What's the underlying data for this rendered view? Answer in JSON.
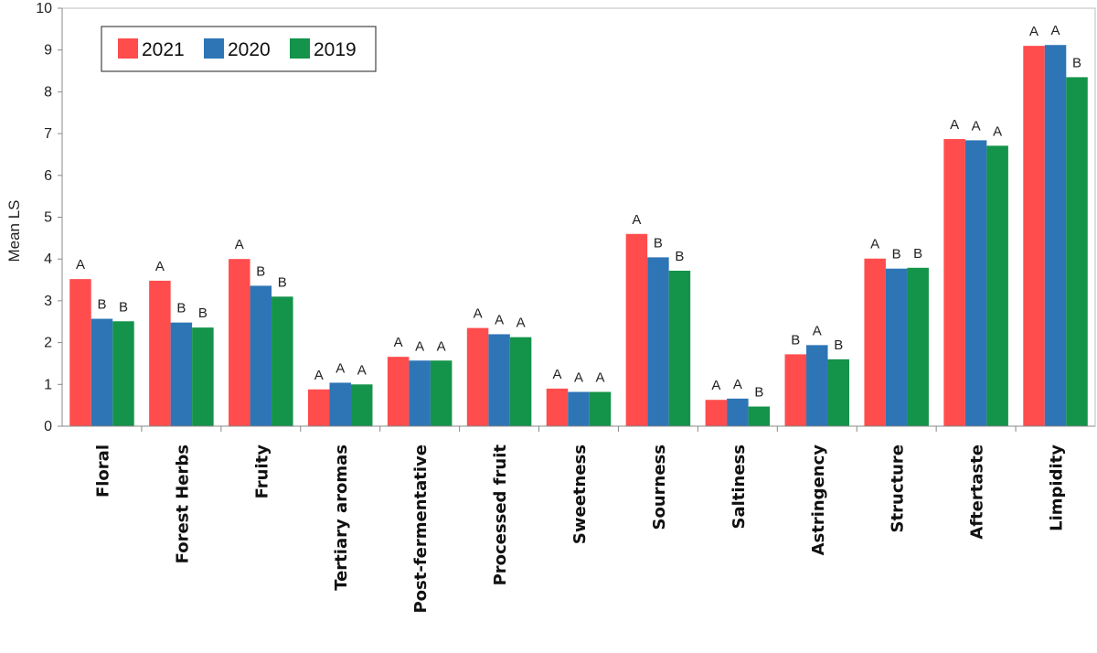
{
  "chart_data": {
    "type": "bar",
    "title": "",
    "xlabel": "",
    "ylabel": "Mean LS",
    "ylim": [
      0,
      10
    ],
    "yticks": [
      0,
      1,
      2,
      3,
      4,
      5,
      6,
      7,
      8,
      9,
      10
    ],
    "grid": false,
    "legend_position": "top-left",
    "categories": [
      "Floral",
      "Forest Herbs",
      "Fruity",
      "Tertiary aromas",
      "Post-fermentative",
      "Processed fruit",
      "Sweetness",
      "Sourness",
      "Saltiness",
      "Astringency",
      "Structure",
      "Aftertaste",
      "Limpidity"
    ],
    "series": [
      {
        "name": "2021",
        "color": "#ff4d4d",
        "values": [
          3.52,
          3.48,
          4.0,
          0.88,
          1.66,
          2.35,
          0.9,
          4.6,
          0.63,
          1.72,
          4.01,
          6.87,
          9.1
        ],
        "letters": [
          "A",
          "A",
          "A",
          "A",
          "A",
          "A",
          "A",
          "A",
          "A",
          "B",
          "A",
          "A",
          "A"
        ]
      },
      {
        "name": "2020",
        "color": "#2e75b6",
        "values": [
          2.57,
          2.48,
          3.36,
          1.04,
          1.57,
          2.2,
          0.82,
          4.04,
          0.66,
          1.94,
          3.77,
          6.84,
          9.12
        ],
        "letters": [
          "B",
          "B",
          "B",
          "A",
          "A",
          "A",
          "A",
          "B",
          "A",
          "A",
          "B",
          "A",
          "A"
        ]
      },
      {
        "name": "2019",
        "color": "#14934a",
        "values": [
          2.51,
          2.36,
          3.1,
          1.0,
          1.57,
          2.13,
          0.82,
          3.72,
          0.47,
          1.6,
          3.79,
          6.71,
          8.35
        ],
        "letters": [
          "B",
          "B",
          "B",
          "A",
          "A",
          "A",
          "A",
          "B",
          "B",
          "B",
          "B",
          "A",
          "B"
        ]
      }
    ]
  }
}
